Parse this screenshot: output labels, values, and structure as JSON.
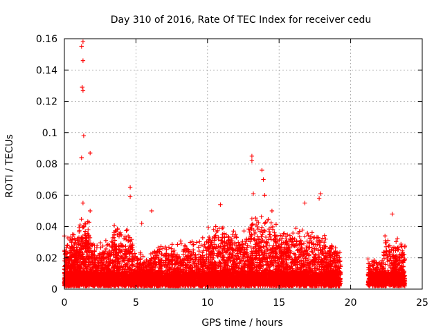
{
  "chart_data": {
    "type": "scatter",
    "title": "Day 310 of 2016, Rate Of TEC Index for receiver cedu",
    "xlabel": "GPS time / hours",
    "ylabel": "ROTI / TECUs",
    "xlim": [
      0,
      25
    ],
    "ylim": [
      0,
      0.16
    ],
    "xticks": [
      0,
      5,
      10,
      15,
      20,
      25
    ],
    "xtick_labels": [
      "0",
      "5",
      "10",
      "15",
      "20",
      "25"
    ],
    "yticks": [
      0,
      0.02,
      0.04,
      0.06,
      0.08,
      0.1,
      0.12,
      0.14,
      0.16
    ],
    "ytick_labels": [
      "0",
      "0.02",
      "0.04",
      "0.06",
      "0.08",
      "0.1",
      "0.12",
      "0.14",
      "0.16"
    ],
    "grid": true,
    "marker": "+",
    "color": "#ff0000",
    "data_gap_hours": [
      19.3,
      21.2
    ],
    "notable_points": [
      {
        "x": 1.3,
        "y": 0.158
      },
      {
        "x": 1.2,
        "y": 0.155
      },
      {
        "x": 1.3,
        "y": 0.146
      },
      {
        "x": 1.25,
        "y": 0.129
      },
      {
        "x": 1.3,
        "y": 0.127
      },
      {
        "x": 1.35,
        "y": 0.098
      },
      {
        "x": 1.2,
        "y": 0.084
      },
      {
        "x": 1.8,
        "y": 0.087
      },
      {
        "x": 1.3,
        "y": 0.055
      },
      {
        "x": 1.8,
        "y": 0.05
      },
      {
        "x": 4.6,
        "y": 0.065
      },
      {
        "x": 4.6,
        "y": 0.059
      },
      {
        "x": 5.4,
        "y": 0.042
      },
      {
        "x": 6.1,
        "y": 0.05
      },
      {
        "x": 10.9,
        "y": 0.054
      },
      {
        "x": 13.1,
        "y": 0.085
      },
      {
        "x": 13.1,
        "y": 0.082
      },
      {
        "x": 13.8,
        "y": 0.076
      },
      {
        "x": 13.9,
        "y": 0.07
      },
      {
        "x": 14.0,
        "y": 0.06
      },
      {
        "x": 13.2,
        "y": 0.061
      },
      {
        "x": 14.5,
        "y": 0.05
      },
      {
        "x": 16.8,
        "y": 0.055
      },
      {
        "x": 17.9,
        "y": 0.061
      },
      {
        "x": 17.8,
        "y": 0.058
      },
      {
        "x": 22.9,
        "y": 0.048
      },
      {
        "x": 22.4,
        "y": 0.034
      }
    ],
    "segments": [
      {
        "x": [
          0.0,
          1.0
        ],
        "base": 0.02,
        "spread": 0.015,
        "count": 420
      },
      {
        "x": [
          1.0,
          1.8
        ],
        "base": 0.03,
        "spread": 0.014,
        "count": 260
      },
      {
        "x": [
          1.8,
          3.3
        ],
        "base": 0.018,
        "spread": 0.012,
        "count": 420
      },
      {
        "x": [
          3.3,
          4.8
        ],
        "base": 0.024,
        "spread": 0.016,
        "count": 380
      },
      {
        "x": [
          4.8,
          6.3
        ],
        "base": 0.013,
        "spread": 0.01,
        "count": 360
      },
      {
        "x": [
          6.3,
          8.0
        ],
        "base": 0.016,
        "spread": 0.012,
        "count": 400
      },
      {
        "x": [
          8.0,
          10.0
        ],
        "base": 0.018,
        "spread": 0.013,
        "count": 420
      },
      {
        "x": [
          10.0,
          11.5
        ],
        "base": 0.024,
        "spread": 0.016,
        "count": 400
      },
      {
        "x": [
          11.5,
          12.8
        ],
        "base": 0.022,
        "spread": 0.014,
        "count": 340
      },
      {
        "x": [
          12.8,
          14.8
        ],
        "base": 0.028,
        "spread": 0.018,
        "count": 520
      },
      {
        "x": [
          14.8,
          16.5
        ],
        "base": 0.024,
        "spread": 0.015,
        "count": 420
      },
      {
        "x": [
          16.5,
          18.3
        ],
        "base": 0.022,
        "spread": 0.015,
        "count": 420
      },
      {
        "x": [
          18.3,
          19.3
        ],
        "base": 0.016,
        "spread": 0.013,
        "count": 260
      },
      {
        "x": [
          21.2,
          22.3
        ],
        "base": 0.012,
        "spread": 0.008,
        "count": 200
      },
      {
        "x": [
          22.3,
          23.8
        ],
        "base": 0.018,
        "spread": 0.013,
        "count": 320
      }
    ]
  }
}
